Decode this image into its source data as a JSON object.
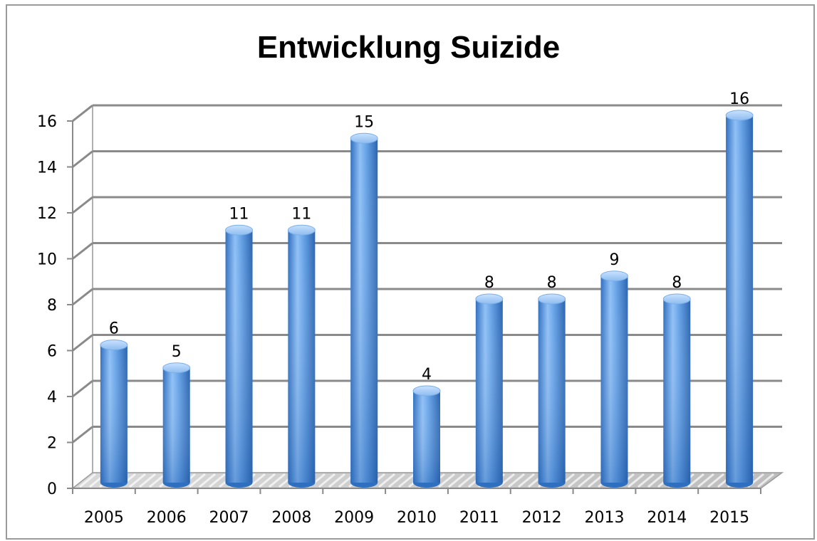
{
  "chart_data": {
    "type": "bar",
    "title": "Entwicklung Suizide",
    "categories": [
      "2005",
      "2006",
      "2007",
      "2008",
      "2009",
      "2010",
      "2011",
      "2012",
      "2013",
      "2014",
      "2015"
    ],
    "values": [
      6,
      5,
      11,
      11,
      15,
      4,
      8,
      8,
      9,
      8,
      16
    ],
    "data_labels": [
      "6",
      "5",
      "11",
      "11",
      "15",
      "4",
      "8",
      "8",
      "9",
      "8",
      "16"
    ],
    "ylim": [
      0,
      16
    ],
    "yticks": [
      "0",
      "2",
      "4",
      "6",
      "8",
      "10",
      "12",
      "14",
      "16"
    ],
    "grid": true,
    "legend": "none",
    "bar_color": "#4f8fd8",
    "style": "3d-cylinder"
  }
}
